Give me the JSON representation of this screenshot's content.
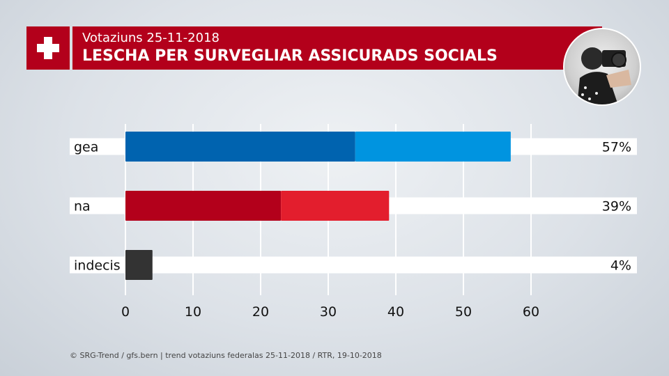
{
  "header": {
    "subtitle": "Votaziuns 25-11-2018",
    "title": "LESCHA PER SURVEGLIAR ASSICURADS SOCIALS"
  },
  "footer": {
    "source": "© SRG-Trend / gfs.bern  |  trend votaziuns federalas 25-11-2018 / RTR, 19-10-2018"
  },
  "chart_data": {
    "type": "bar",
    "orientation": "horizontal",
    "stacked": true,
    "categories": [
      "gea",
      "na",
      "indecis"
    ],
    "series": [
      {
        "values": [
          34,
          23,
          4
        ]
      },
      {
        "values": [
          23,
          16,
          0
        ]
      }
    ],
    "totals": [
      57,
      39,
      4
    ],
    "value_labels": [
      "57%",
      "39%",
      "4%"
    ],
    "xlim": [
      0,
      60
    ],
    "xticks": [
      "0",
      "10",
      "20",
      "30",
      "40",
      "50",
      "60"
    ],
    "grid": true,
    "colors": {
      "gea": [
        "#0063af",
        "#0094e0"
      ],
      "na": [
        "#b3001b",
        "#e31e2d"
      ],
      "indecis": [
        "#333333",
        "#333333"
      ]
    }
  }
}
